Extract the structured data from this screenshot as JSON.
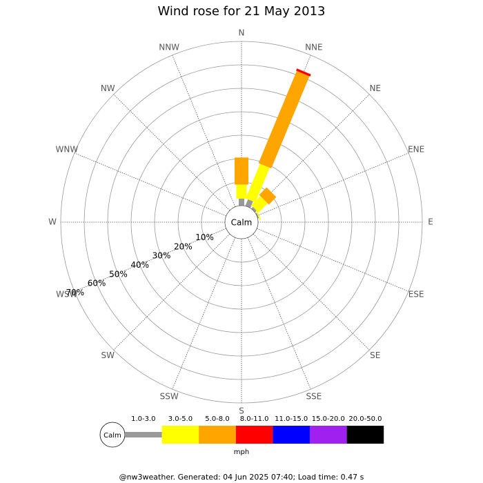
{
  "chart_data": {
    "type": "windrose",
    "title": "Wind rose for 21 May 2013",
    "calm_label": "Calm",
    "categories": [
      "N",
      "NNE",
      "NE",
      "ENE",
      "E",
      "ESE",
      "SE",
      "SSE",
      "S",
      "SSW",
      "SW",
      "WSW",
      "W",
      "WNW",
      "NW",
      "NNW"
    ],
    "series": [
      {
        "name": "1.0-3.0",
        "color": "#999999",
        "values": [
          3,
          3,
          1,
          0.5,
          0,
          0,
          0,
          0,
          0,
          0,
          0,
          0,
          0,
          0,
          0,
          0
        ]
      },
      {
        "name": "3.0-5.0",
        "color": "#ffff00",
        "values": [
          6,
          16,
          5.5,
          0.5,
          0,
          0,
          0,
          0,
          0,
          0,
          0,
          0,
          0,
          0,
          0,
          0
        ]
      },
      {
        "name": "5.0-8.0",
        "color": "#ffa500",
        "values": [
          11.5,
          42.5,
          4.5,
          0,
          0,
          0,
          0,
          0,
          0,
          0,
          0,
          0,
          0,
          0,
          0,
          0
        ]
      },
      {
        "name": "8.0-11.0",
        "color": "#ff0000",
        "values": [
          0,
          1,
          0,
          0,
          0,
          0,
          0,
          0,
          0,
          0,
          0,
          0,
          0,
          0,
          0,
          0
        ]
      },
      {
        "name": "11.0-15.0",
        "color": "#0000ff",
        "values": [
          0,
          0,
          0,
          0,
          0,
          0,
          0,
          0,
          0,
          0,
          0,
          0,
          0,
          0,
          0,
          0
        ]
      },
      {
        "name": "15.0-20.0",
        "color": "#a020f0",
        "values": [
          0,
          0,
          0,
          0,
          0,
          0,
          0,
          0,
          0,
          0,
          0,
          0,
          0,
          0,
          0,
          0
        ]
      },
      {
        "name": "20.0-50.0",
        "color": "#000000",
        "values": [
          0,
          0,
          0,
          0,
          0,
          0,
          0,
          0,
          0,
          0,
          0,
          0,
          0,
          0,
          0,
          0
        ]
      }
    ],
    "rlim": [
      0,
      70
    ],
    "rticks": [
      {
        "value": 10,
        "label": "10%"
      },
      {
        "value": 20,
        "label": "20%"
      },
      {
        "value": 30,
        "label": "30%"
      },
      {
        "value": 40,
        "label": "40%"
      },
      {
        "value": 50,
        "label": "50%"
      },
      {
        "value": 60,
        "label": "60%"
      },
      {
        "value": 70,
        "label": "70%"
      }
    ],
    "legend_unit": "mph",
    "footer": "@nw3weather. Generated: 04 Jun 2025 07:40; Load time: 0.47 s"
  }
}
